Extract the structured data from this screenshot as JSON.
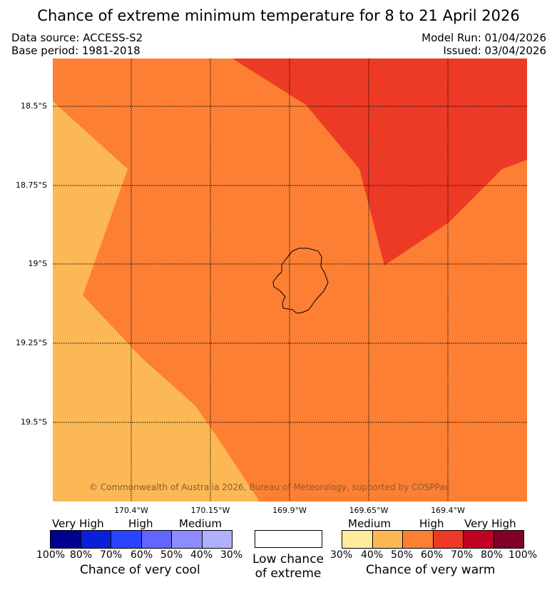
{
  "title": "Chance of extreme minimum temperature for 8 to 21 April 2026",
  "header": {
    "data_source": "Data source: ACCESS-S2",
    "base_period": "Base period: 1981-2018",
    "model_run": "Model Run: 01/04/2026",
    "issued": "Issued: 03/04/2026"
  },
  "map": {
    "latitude_labels": [
      "18.5°S",
      "18.75°S",
      "19°S",
      "19.25°S",
      "19.5°S"
    ],
    "longitude_labels": [
      "170.4°W",
      "170.15°W",
      "169.9°W",
      "169.65°W",
      "169.4°W"
    ],
    "copyright": "© Commonwealth of Australia 2026, Bureau of Meteorology, supported by COSPPac",
    "region_colors": {
      "medium_warm": "#fcb854",
      "high_warm_60": "#fd7f33",
      "high_warm_70": "#ed3a26"
    }
  },
  "legend": {
    "cool": {
      "category_labels": [
        "Very High",
        "High",
        "Medium"
      ],
      "tick_labels": [
        "100%",
        "80%",
        "70%",
        "60%",
        "50%",
        "40%",
        "30%"
      ],
      "colors": [
        "#00008f",
        "#0a20d8",
        "#2a43fe",
        "#6265fe",
        "#8e8cfe",
        "#b2b0fe"
      ],
      "caption": "Chance of very cool"
    },
    "neutral": {
      "caption_line1": "Low chance",
      "caption_line2": "of extreme",
      "color": "#ffffff"
    },
    "warm": {
      "category_labels": [
        "Medium",
        "High",
        "Very High"
      ],
      "tick_labels": [
        "30%",
        "40%",
        "50%",
        "60%",
        "70%",
        "80%",
        "100%"
      ],
      "colors": [
        "#feec9e",
        "#fcb854",
        "#fd7f33",
        "#ed3a26",
        "#c20024",
        "#800026"
      ],
      "caption": "Chance of very warm"
    }
  }
}
